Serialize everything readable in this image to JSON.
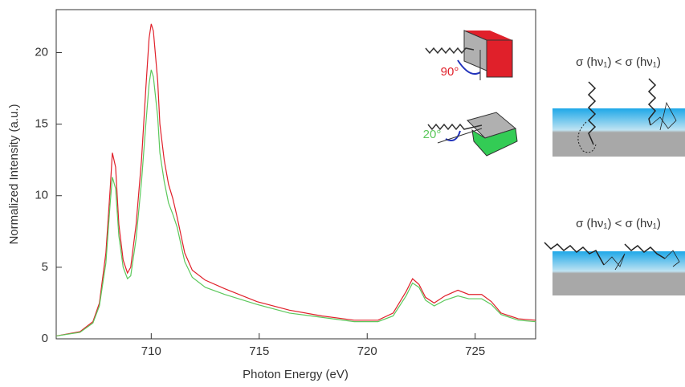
{
  "chart_data": {
    "type": "line",
    "xlabel": "Photon Energy (eV)",
    "ylabel": "Normalized Intensity (a.u.)",
    "x": [
      705.6,
      706.7,
      707.3,
      707.6,
      707.9,
      708.1,
      708.2,
      708.35,
      708.5,
      708.7,
      708.9,
      709.05,
      709.3,
      709.55,
      709.75,
      709.9,
      710.0,
      710.1,
      710.3,
      710.4,
      710.6,
      710.8,
      711.0,
      711.2,
      711.55,
      711.9,
      712.5,
      713.4,
      714.9,
      716.4,
      717.9,
      719.4,
      720.5,
      721.2,
      721.8,
      722.1,
      722.4,
      722.7,
      723.1,
      723.6,
      724.2,
      724.7,
      725.3,
      725.75,
      726.2,
      727.0,
      727.8
    ],
    "series": [
      {
        "color": "#e0202a",
        "values": [
          0.2,
          0.5,
          1.2,
          2.5,
          6,
          10.5,
          13,
          12,
          8,
          5.5,
          4.6,
          5,
          8,
          12.5,
          17.5,
          21,
          22,
          21.5,
          18,
          15,
          12.5,
          10.8,
          9.8,
          8.5,
          6,
          4.8,
          4.1,
          3.5,
          2.6,
          2.0,
          1.6,
          1.3,
          1.3,
          1.8,
          3.3,
          4.2,
          3.8,
          2.9,
          2.5,
          3.0,
          3.4,
          3.1,
          3.1,
          2.6,
          1.8,
          1.4,
          1.3
        ]
      },
      {
        "color": "#5cc85c",
        "values": [
          0.2,
          0.45,
          1.1,
          2.3,
          5.3,
          9.5,
          11.3,
          10.5,
          7.2,
          5.0,
          4.2,
          4.4,
          7,
          11,
          15,
          17.8,
          18.8,
          18.3,
          15.5,
          13,
          11,
          9.5,
          8.7,
          7.8,
          5.4,
          4.3,
          3.6,
          3.1,
          2.4,
          1.8,
          1.5,
          1.2,
          1.2,
          1.6,
          3.0,
          3.9,
          3.6,
          2.7,
          2.3,
          2.7,
          3.0,
          2.8,
          2.8,
          2.4,
          1.7,
          1.3,
          1.2
        ]
      }
    ],
    "xlim": [
      705.6,
      727.8
    ],
    "xticks": [
      710,
      715,
      720,
      725
    ],
    "ylim": [
      0,
      23
    ],
    "yticks": [
      0,
      5,
      10,
      15,
      20
    ],
    "annotations": [
      {
        "text": "90°",
        "color": "#e0202a"
      },
      {
        "text": "20°",
        "color": "#5cc85c"
      },
      {
        "text": "σ (hν₁)  <  σ (hν₁)"
      },
      {
        "text": "σ (hν₁)  <  σ (hν₁)"
      }
    ]
  }
}
